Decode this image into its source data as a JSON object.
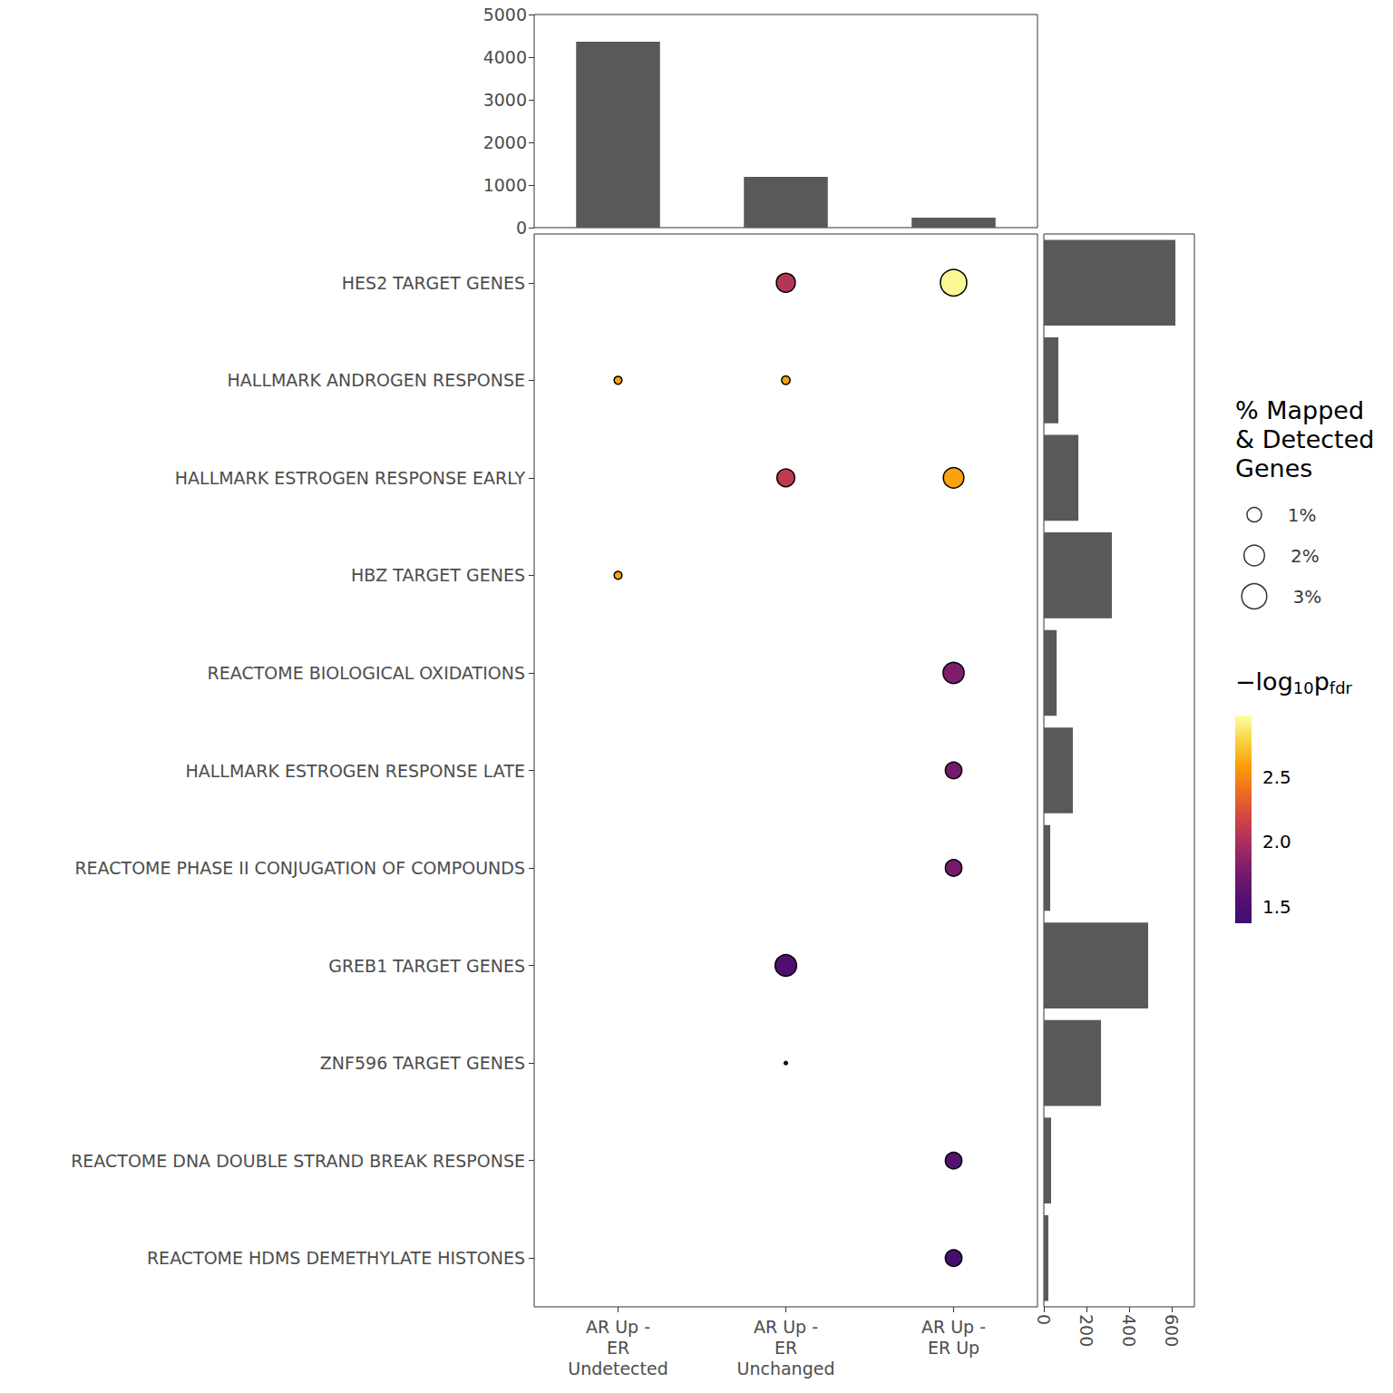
{
  "chart_data": {
    "type": "dot_matrix",
    "columns": [
      "AR Up -\nER\nUndetected",
      "AR Up -\nER\nUnchanged",
      "AR Up -\nER Up"
    ],
    "rows": [
      "HES2 TARGET GENES",
      "HALLMARK ANDROGEN RESPONSE",
      "HALLMARK ESTROGEN RESPONSE EARLY",
      "HBZ TARGET GENES",
      "REACTOME BIOLOGICAL OXIDATIONS",
      "HALLMARK ESTROGEN RESPONSE LATE",
      "REACTOME PHASE II CONJUGATION OF COMPOUNDS",
      "GREB1 TARGET GENES",
      "ZNF596 TARGET GENES",
      "REACTOME DNA DOUBLE STRAND BREAK RESPONSE",
      "REACTOME HDMS DEMETHYLATE HISTONES"
    ],
    "column_totals": {
      "values": [
        4360,
        1190,
        234
      ],
      "ylim": [
        0,
        5000
      ],
      "yticks": [
        0,
        1000,
        2000,
        3000,
        4000,
        5000
      ]
    },
    "row_totals": {
      "values": [
        617,
        68,
        162,
        319,
        60,
        136,
        30,
        489,
        268,
        34,
        21
      ],
      "xlim": [
        0,
        706
      ],
      "xticks": [
        0,
        200,
        400,
        600
      ]
    },
    "points": [
      {
        "row": "HES2 TARGET GENES",
        "column": "AR Up -\nER\nUnchanged",
        "percent": 1.7,
        "neg_log10_pfdr": 2.05
      },
      {
        "row": "HES2 TARGET GENES",
        "column": "AR Up -\nER Up",
        "percent": 3.3,
        "neg_log10_pfdr": 2.95
      },
      {
        "row": "HALLMARK ANDROGEN RESPONSE",
        "column": "AR Up -\nER\nUndetected",
        "percent": 0.3,
        "neg_log10_pfdr": 2.6
      },
      {
        "row": "HALLMARK ANDROGEN RESPONSE",
        "column": "AR Up -\nER\nUnchanged",
        "percent": 0.35,
        "neg_log10_pfdr": 2.6
      },
      {
        "row": "HALLMARK ESTROGEN RESPONSE EARLY",
        "column": "AR Up -\nER\nUnchanged",
        "percent": 1.5,
        "neg_log10_pfdr": 2.1
      },
      {
        "row": "HALLMARK ESTROGEN RESPONSE EARLY",
        "column": "AR Up -\nER Up",
        "percent": 2.0,
        "neg_log10_pfdr": 2.6
      },
      {
        "row": "HBZ TARGET GENES",
        "column": "AR Up -\nER\nUndetected",
        "percent": 0.3,
        "neg_log10_pfdr": 2.6
      },
      {
        "row": "REACTOME BIOLOGICAL OXIDATIONS",
        "column": "AR Up -\nER Up",
        "percent": 2.1,
        "neg_log10_pfdr": 1.8
      },
      {
        "row": "HALLMARK ESTROGEN RESPONSE LATE",
        "column": "AR Up -\nER Up",
        "percent": 1.3,
        "neg_log10_pfdr": 1.75
      },
      {
        "row": "REACTOME PHASE II CONJUGATION OF COMPOUNDS",
        "column": "AR Up -\nER Up",
        "percent": 1.3,
        "neg_log10_pfdr": 1.75
      },
      {
        "row": "GREB1 TARGET GENES",
        "column": "AR Up -\nER\nUnchanged",
        "percent": 2.2,
        "neg_log10_pfdr": 1.5
      },
      {
        "row": "ZNF596 TARGET GENES",
        "column": "AR Up -\nER\nUnchanged",
        "percent": 0.05,
        "neg_log10_pfdr": 1.45
      },
      {
        "row": "REACTOME DNA DOUBLE STRAND BREAK RESPONSE",
        "column": "AR Up -\nER Up",
        "percent": 1.3,
        "neg_log10_pfdr": 1.55
      },
      {
        "row": "REACTOME HDMS DEMETHYLATE HISTONES",
        "column": "AR Up -\nER Up",
        "percent": 1.3,
        "neg_log10_pfdr": 1.45
      }
    ],
    "size_legend": {
      "title": "% Mapped\n& Detected\nGenes",
      "values": [
        1,
        2,
        3
      ],
      "value_labels": [
        "1%",
        "2%",
        "3%"
      ]
    },
    "color_scale": {
      "title": [
        {
          "text": "−log"
        },
        {
          "text": "10",
          "sub": true
        },
        {
          "text": "p"
        },
        {
          "text": "fdr",
          "sub": true
        }
      ],
      "range": [
        1.37,
        2.98
      ],
      "ticks": [
        1.5,
        {
          "value": 2,
          "label": "2.0"
        },
        2.5
      ]
    }
  }
}
